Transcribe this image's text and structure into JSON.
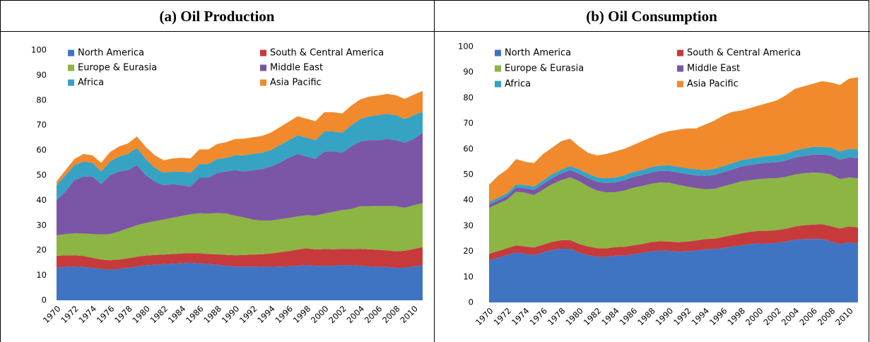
{
  "chart_data": [
    {
      "type": "stacked-area",
      "title": "(a) Oil Production",
      "categories": [
        "1970",
        null,
        "1972",
        null,
        "1974",
        null,
        "1976",
        null,
        "1978",
        null,
        "1980",
        null,
        "1982",
        null,
        "1984",
        null,
        "1986",
        null,
        "1988",
        null,
        "1990",
        null,
        "1992",
        null,
        "1994",
        null,
        "1996",
        null,
        "1998",
        null,
        "2000",
        null,
        "2002",
        null,
        "2004",
        null,
        "2006",
        null,
        "2008",
        null,
        "2010",
        null
      ],
      "ylim": [
        0,
        100
      ],
      "yticks": [
        0,
        10,
        20,
        30,
        40,
        50,
        60,
        70,
        80,
        90,
        100
      ],
      "grid": false,
      "legend": "top-left",
      "series": [
        {
          "name": "North America",
          "color": "#3f74c2",
          "values": [
            13,
            13.3,
            13.5,
            13.3,
            13,
            12.5,
            12.2,
            12.5,
            13,
            13.5,
            14,
            14.2,
            14.5,
            14.6,
            14.8,
            15,
            14.8,
            14.5,
            14.2,
            13.8,
            13.5,
            13.5,
            13.5,
            13.4,
            13.4,
            13.5,
            13.6,
            13.8,
            14,
            13.8,
            13.8,
            13.8,
            14,
            14,
            13.8,
            13.5,
            13.3,
            13.3,
            13,
            13,
            13.5,
            14
          ]
        },
        {
          "name": "South & Central America",
          "color": "#c63a3c",
          "values": [
            4.8,
            4.7,
            4.5,
            4.4,
            4,
            3.8,
            3.8,
            3.8,
            3.8,
            3.9,
            3.9,
            3.9,
            3.8,
            3.9,
            3.9,
            3.9,
            4,
            4,
            4.2,
            4.4,
            4.5,
            4.6,
            4.8,
            5,
            5.3,
            5.7,
            6.1,
            6.5,
            6.8,
            6.5,
            6.7,
            6.6,
            6.6,
            6.5,
            6.8,
            6.9,
            6.9,
            6.7,
            6.6,
            6.8,
            7,
            7.3
          ]
        },
        {
          "name": "Europe & Eurasia",
          "color": "#8cb543",
          "values": [
            8.2,
            8.5,
            8.8,
            9,
            9.5,
            10,
            10.5,
            11.2,
            12,
            12.6,
            13,
            13.5,
            14,
            14.5,
            15,
            15.5,
            16,
            16.2,
            16.5,
            16.5,
            15.8,
            15,
            14,
            13.5,
            13.2,
            13.2,
            13.2,
            13.3,
            13.2,
            13.5,
            14.2,
            15,
            15.5,
            16,
            17,
            17.2,
            17.5,
            17.7,
            18,
            17.2,
            17.5,
            17.5
          ]
        },
        {
          "name": "Middle East",
          "color": "#7b55a6",
          "values": [
            14,
            17,
            21.2,
            22.8,
            23,
            20.2,
            23.5,
            24,
            23.2,
            24,
            19.1,
            15.9,
            13.7,
            13.5,
            12.3,
            11.1,
            14.2,
            14.3,
            16.1,
            16.8,
            18.2,
            18.4,
            19.7,
            20.6,
            21.6,
            22.6,
            24.1,
            24.9,
            23.5,
            22.7,
            24.8,
            24.1,
            22.9,
            25,
            25.9,
            26.4,
            26.3,
            26.8,
            26.4,
            26,
            26.5,
            28.2
          ]
        },
        {
          "name": "Africa",
          "color": "#36a3c4",
          "values": [
            6,
            6.5,
            6,
            6,
            5.5,
            5,
            5.5,
            6,
            6.5,
            7,
            6.5,
            5.5,
            5,
            5,
            5.5,
            5.5,
            5.5,
            5.5,
            5.5,
            5.5,
            6,
            6.5,
            6.5,
            6.5,
            6.5,
            7,
            7,
            7.5,
            7.5,
            7.5,
            8,
            8,
            8,
            8.5,
            9,
            9.5,
            10,
            10,
            10,
            9.5,
            9.5,
            8.5
          ]
        },
        {
          "name": "Asia Pacific",
          "color": "#f08a2c",
          "values": [
            1.5,
            2,
            2.5,
            3,
            3,
            3.5,
            3.8,
            4,
            4.2,
            4.5,
            4.8,
            5,
            5,
            5.2,
            5.5,
            5.7,
            5.8,
            5.8,
            6,
            6.2,
            6.5,
            6.6,
            6.7,
            6.7,
            7,
            7.2,
            7.4,
            7.6,
            7.6,
            7.6,
            7.7,
            7.7,
            7.7,
            7.8,
            7.8,
            7.9,
            7.9,
            8,
            8,
            8,
            8.2,
            8.2
          ]
        }
      ]
    },
    {
      "type": "stacked-area",
      "title": "(b) Oil Consumption",
      "categories": [
        "1970",
        null,
        "1972",
        null,
        "1974",
        null,
        "1976",
        null,
        "1978",
        null,
        "1980",
        null,
        "1982",
        null,
        "1984",
        null,
        "1986",
        null,
        "1988",
        null,
        "1990",
        null,
        "1992",
        null,
        "1994",
        null,
        "1996",
        null,
        "1998",
        null,
        "2000",
        null,
        "2002",
        null,
        "2004",
        null,
        "2006",
        null,
        "2008",
        null,
        "2010",
        null
      ],
      "ylim": [
        0,
        100
      ],
      "yticks": [
        0,
        10,
        20,
        30,
        40,
        50,
        60,
        70,
        80,
        90,
        100
      ],
      "grid": false,
      "legend": "top-left",
      "series": [
        {
          "name": "North America",
          "color": "#3f74c2",
          "values": [
            16.5,
            17.5,
            18.5,
            19.5,
            19,
            18.5,
            19.5,
            20.5,
            21,
            21,
            19.5,
            18.5,
            17.8,
            17.8,
            18.3,
            18.3,
            18.8,
            19.3,
            20,
            20.3,
            20.2,
            19.8,
            20,
            20.3,
            20.8,
            20.8,
            21.3,
            21.8,
            22.3,
            22.8,
            23.1,
            23,
            23.3,
            23.8,
            24.5,
            24.8,
            24.8,
            24.8,
            23.8,
            22.8,
            23.5,
            23
          ]
        },
        {
          "name": "South & Central America",
          "color": "#c63a3c",
          "values": [
            2.5,
            2.6,
            2.7,
            2.8,
            2.9,
            3,
            3.1,
            3.2,
            3.3,
            3.4,
            3.4,
            3.4,
            3.4,
            3.3,
            3.3,
            3.4,
            3.5,
            3.5,
            3.6,
            3.6,
            3.6,
            3.7,
            3.8,
            3.9,
            4,
            4.1,
            4.3,
            4.5,
            4.7,
            4.8,
            4.9,
            5,
            5,
            5,
            5.2,
            5.4,
            5.6,
            5.8,
            6,
            6.1,
            6.2,
            6.3
          ]
        },
        {
          "name": "Europe & Eurasia",
          "color": "#8cb543",
          "values": [
            18,
            18.5,
            19,
            21,
            21,
            20.5,
            21.5,
            22.5,
            23.5,
            24.5,
            24.5,
            23.5,
            22.5,
            22,
            21.5,
            22,
            22.5,
            22.7,
            22.8,
            23,
            23,
            22.5,
            21.5,
            20.5,
            19.5,
            19.5,
            19.8,
            20,
            20.3,
            20.2,
            20.2,
            20.5,
            20.3,
            20.3,
            20.3,
            20.3,
            20.4,
            20,
            20.2,
            19.3,
            19.2,
            19.2
          ]
        },
        {
          "name": "Middle East",
          "color": "#7b55a6",
          "values": [
            1.2,
            1.3,
            1.4,
            1.6,
            1.8,
            2,
            2.2,
            2.4,
            2.6,
            2.8,
            3,
            3.2,
            3.4,
            3.6,
            3.8,
            4,
            4.2,
            4.3,
            4.4,
            4.5,
            4.6,
            4.8,
            4.9,
            5,
            5.2,
            5.4,
            5.5,
            5.6,
            5.8,
            5.9,
            6,
            6.1,
            6.2,
            6.4,
            6.6,
            6.8,
            7,
            7.2,
            7.4,
            7.6,
            7.8,
            8
          ]
        },
        {
          "name": "Africa",
          "color": "#36a3c4",
          "values": [
            1,
            1,
            1.1,
            1.2,
            1.2,
            1.3,
            1.4,
            1.5,
            1.5,
            1.6,
            1.7,
            1.8,
            1.8,
            1.9,
            1.9,
            2,
            2,
            2,
            2.1,
            2.1,
            2.2,
            2.2,
            2.3,
            2.3,
            2.3,
            2.4,
            2.4,
            2.5,
            2.5,
            2.5,
            2.6,
            2.6,
            2.7,
            2.7,
            2.8,
            2.9,
            3,
            3,
            3.1,
            3.2,
            3.3,
            3.4
          ]
        },
        {
          "name": "Asia Pacific",
          "color": "#f08a2c",
          "values": [
            6.8,
            8.6,
            9.3,
            9.9,
            9.1,
            9.2,
            10.3,
            10.4,
            11.1,
            10.7,
            8.9,
            8.1,
            8.6,
            9.4,
            10.2,
            10.3,
            10.5,
            11.2,
            11.6,
            12.5,
            13.4,
            14.5,
            15.5,
            16,
            17.7,
            18.8,
            19.7,
            20.1,
            19.4,
            19.8,
            20.2,
            20.8,
            21.5,
            22.8,
            24.1,
            24.3,
            24.7,
            25.7,
            25.5,
            26,
            27.5,
            28.1
          ]
        }
      ]
    }
  ]
}
